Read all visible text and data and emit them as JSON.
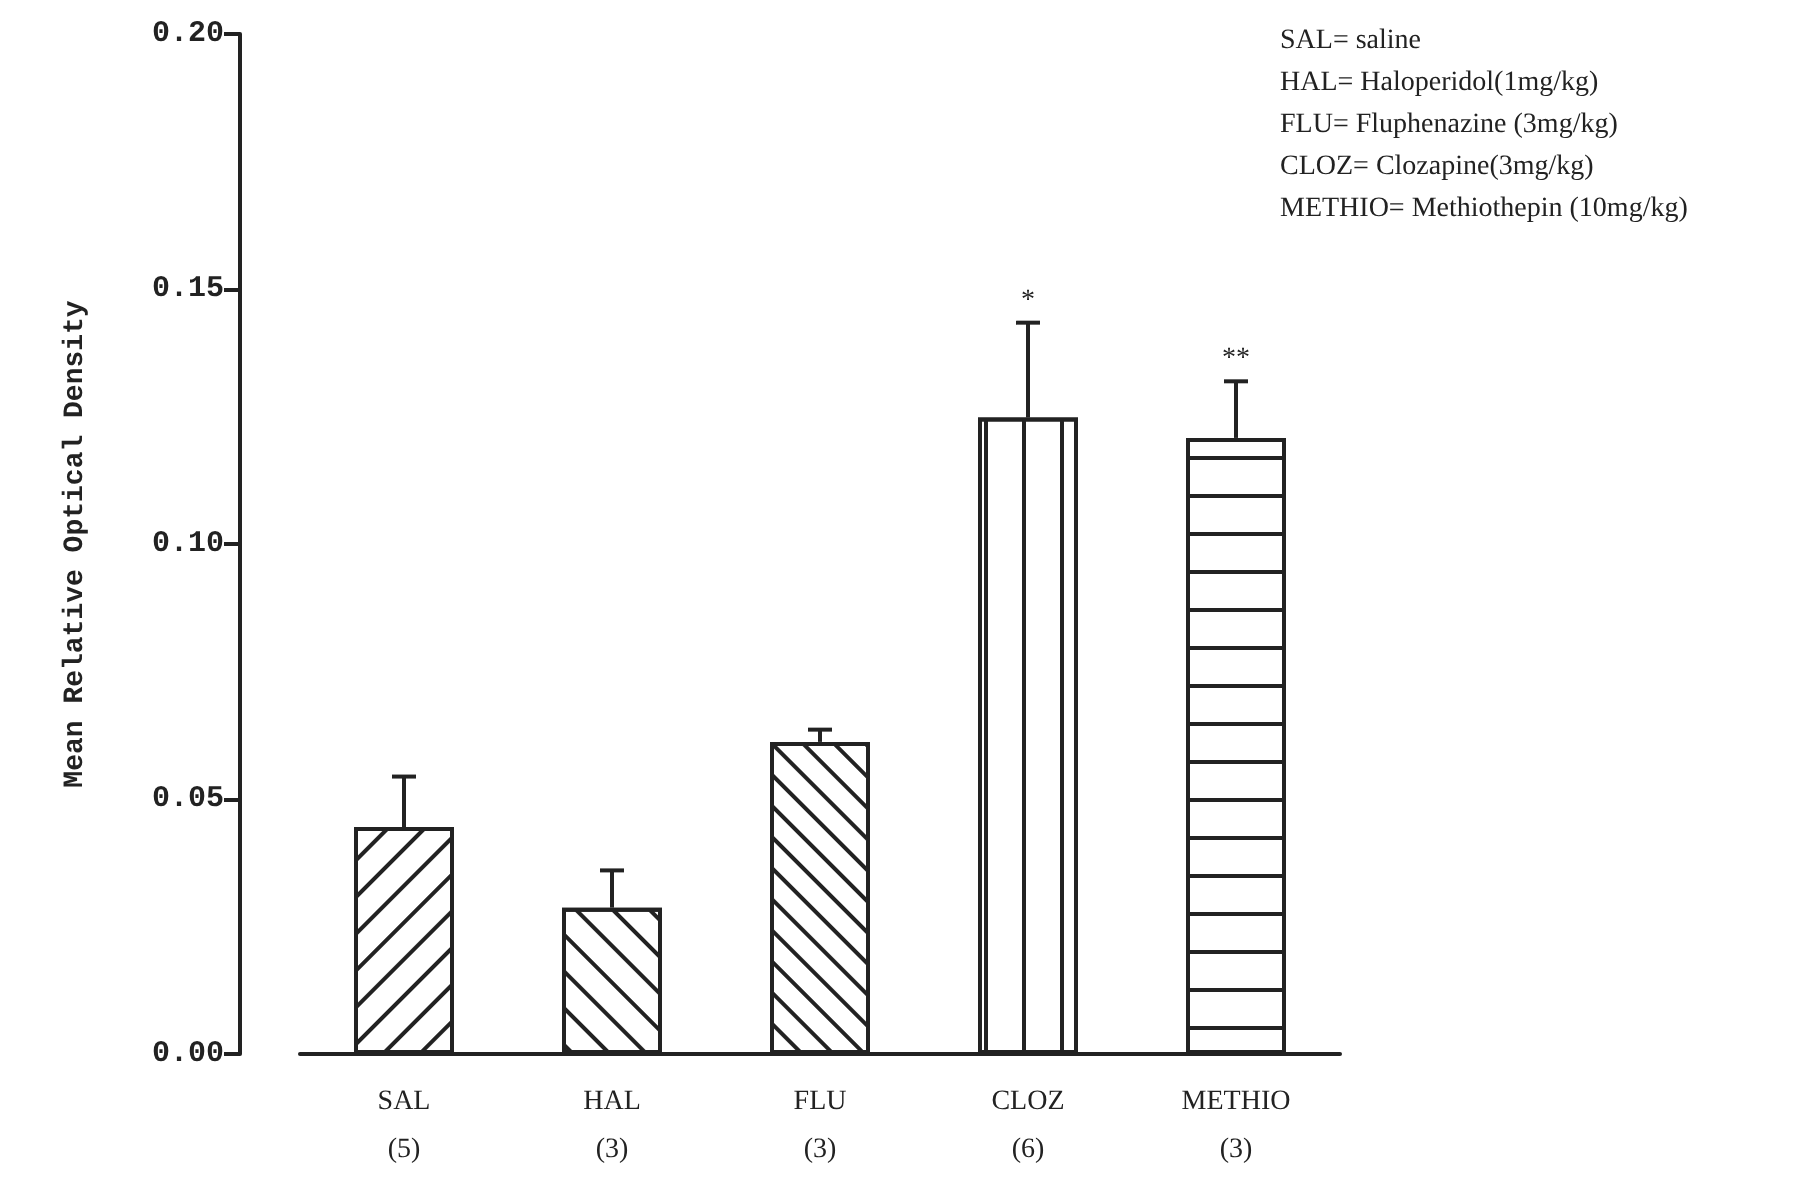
{
  "chart_data": {
    "type": "bar",
    "ylabel": "Mean Relative Optical Density",
    "categories": [
      "SAL\n(5)",
      "HAL\n(3)",
      "FLU\n(3)",
      "CLOZ\n(6)",
      "METHIO\n(3)"
    ],
    "values": [
      0.0445,
      0.0287,
      0.0612,
      0.1248,
      0.1208
    ],
    "errors": [
      [
        0.0445,
        0.0544
      ],
      [
        0.0287,
        0.036
      ],
      [
        0.0612,
        0.0636
      ],
      [
        0.1248,
        0.1434
      ],
      [
        0.1208,
        0.1319
      ]
    ],
    "color": "#ffffff",
    "ylim": [
      0,
      0.2
    ],
    "yticks": [
      {
        "value": 0,
        "label": "0.00"
      },
      {
        "value": 0.05,
        "label": "0.05"
      },
      {
        "value": 0.1,
        "label": "0.10"
      },
      {
        "value": 0.15,
        "label": "0.15"
      },
      {
        "value": 0.2,
        "label": "0.20"
      }
    ],
    "grid": false,
    "annotations": [
      {
        "text": "*",
        "x": "CLOZ\n(6)",
        "y": 0.1434
      },
      {
        "text": "**",
        "x": "METHIO\n(3)",
        "y": 0.1319
      },
      "SAL= saline",
      "HAL= Haloperidol(1mg/kg)",
      "FLU= Fluphenazine (3mg/kg)",
      "CLOZ= Clozapine(3mg/kg)",
      "METHIO= Methiothepin (10mg/kg)"
    ]
  }
}
